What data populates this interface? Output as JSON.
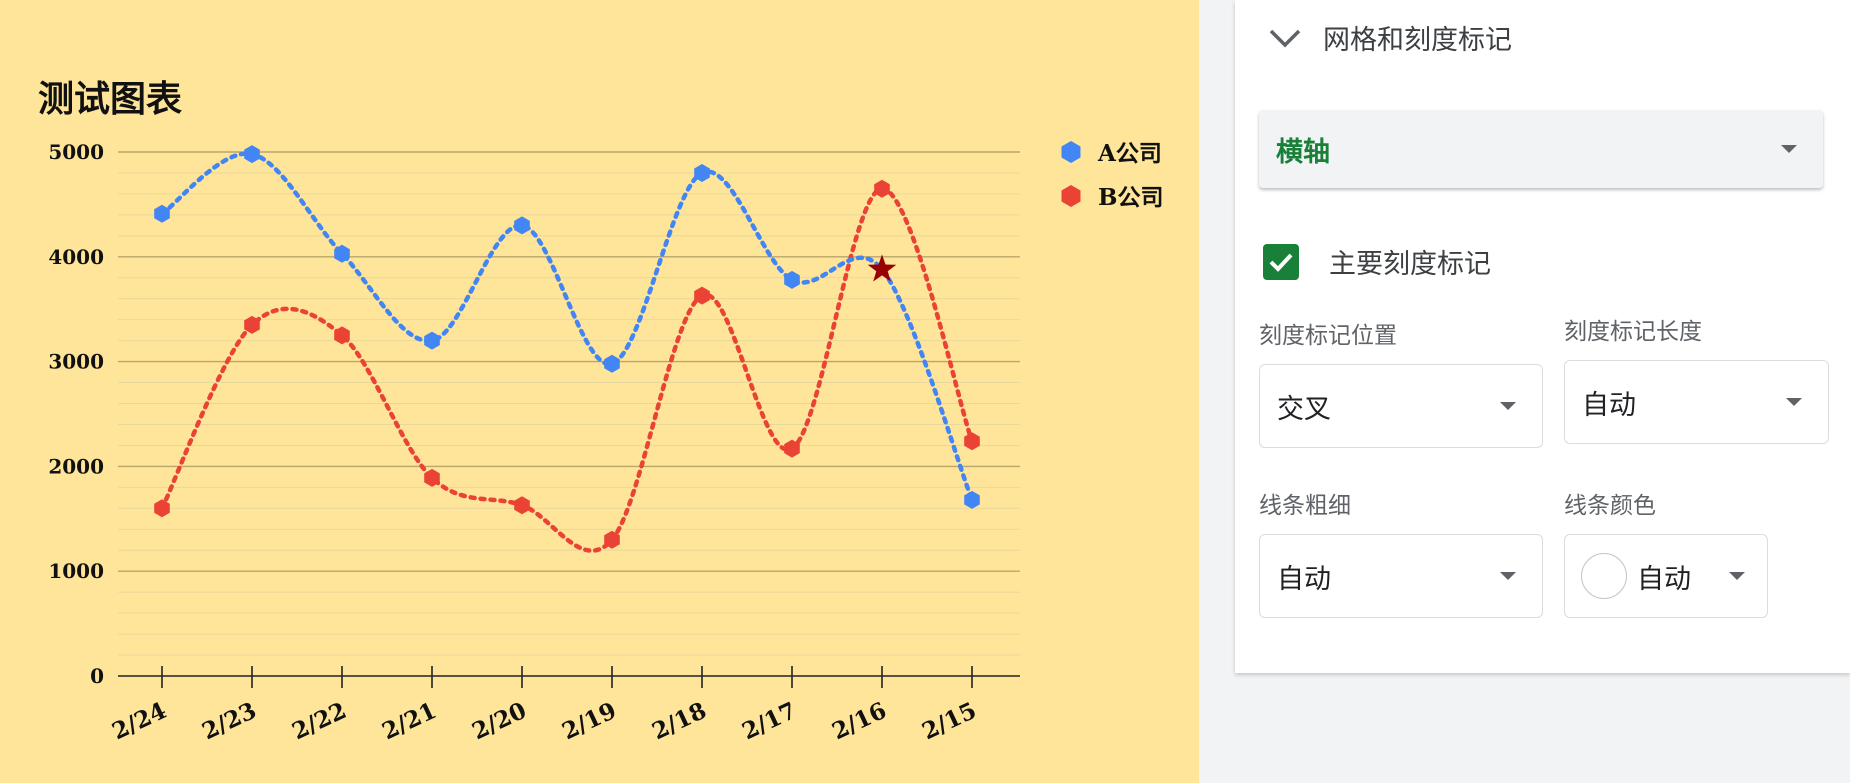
{
  "chart_data": {
    "type": "line",
    "title": "测试图表",
    "categories": [
      "2/24",
      "2/23",
      "2/22",
      "2/21",
      "2/20",
      "2/19",
      "2/18",
      "2/17",
      "2/16",
      "2/15"
    ],
    "ylim": [
      0,
      5000
    ],
    "yticks": [
      0,
      1000,
      2000,
      3000,
      4000,
      5000
    ],
    "grid": true,
    "line_style": "dotted, smoothed",
    "legend_position": "right",
    "series": [
      {
        "name": "A公司",
        "color": "#4285f4",
        "values": [
          4410,
          4980,
          4030,
          3200,
          4300,
          2980,
          4800,
          3780,
          3880,
          1680
        ]
      },
      {
        "name": "B公司",
        "color": "#ea4335",
        "values": [
          1600,
          3350,
          3250,
          1890,
          1630,
          1300,
          3630,
          2170,
          4650,
          2240
        ]
      }
    ],
    "annotations": [
      {
        "series": "A公司",
        "category": "2/16",
        "marker": "star",
        "color": "#990000"
      }
    ]
  },
  "panel": {
    "section_title": "网格和刻度标记",
    "axis_select": "横轴",
    "major_ticks_label": "主要刻度标记",
    "major_ticks_checked": true,
    "tick_position_label": "刻度标记位置",
    "tick_position_value": "交叉",
    "tick_length_label": "刻度标记长度",
    "tick_length_value": "自动",
    "line_weight_label": "线条粗细",
    "line_weight_value": "自动",
    "line_color_label": "线条颜色",
    "line_color_value": "自动"
  },
  "colors": {
    "chart_background": "#ffe599",
    "accent": "#188038"
  }
}
